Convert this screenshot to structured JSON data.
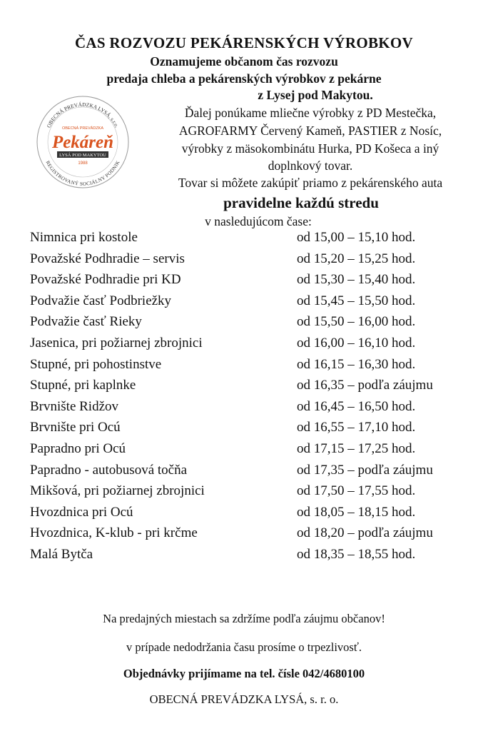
{
  "title": "ČAS ROZVOZU PEKÁRENSKÝCH VÝROBKOV",
  "subtitle_lines": [
    "Oznamujeme občanom čas rozvozu",
    "predaja chleba a  pekárenských výrobkov z  pekárne",
    "z Lysej pod Makytou."
  ],
  "info_lines": [
    "Ďalej ponúkame mliečne výrobky z PD Mestečka,",
    "AGROFARMY Červený Kameň, PASTIER z Nosíc,",
    "výrobky z mäsokombinátu Hurka, PD Košeca a iný",
    "doplnkový tovar.",
    "Tovar si môžete zakúpiť priamo z pekárenského auta"
  ],
  "highlight": "pravidelne každú stredu",
  "schedule_intro": "v nasledujúcom čase:",
  "logo": {
    "top_text": "OBECNÁ PREVÁDZKA LYSÁ, s.r.o.",
    "inner_text": "OBECNÁ PREVÁDZKA",
    "brand": "Pekáreň",
    "ribbon": "LYSÁ POD MAKYTOU",
    "year": "1988",
    "bottom_text": "REGISTROVANÝ SOCIÁLNY PODNIK",
    "brand_color": "#d9531e"
  },
  "schedule": [
    {
      "place": "Nimnica pri kostole",
      "time": "od 15,00 – 15,10 hod."
    },
    {
      "place": "Považské Podhradie – servis",
      "time": "od 15,20 – 15,25 hod."
    },
    {
      "place": "Považské Podhradie pri KD",
      "time": "od 15,30 – 15,40 hod."
    },
    {
      "place": "Podvažie časť Podbriežky",
      "time": "od 15,45 – 15,50 hod."
    },
    {
      "place": "Podvažie časť Rieky",
      "time": "od 15,50 – 16,00 hod."
    },
    {
      "place": "Jasenica, pri požiarnej zbrojnici",
      "time": "od 16,00 – 16,10 hod."
    },
    {
      "place": "Stupné, pri pohostinstve",
      "time": "od 16,15 – 16,30 hod."
    },
    {
      "place": "Stupné, pri kaplnke",
      "time": "od 16,35 – podľa záujmu"
    },
    {
      "place": "Brvnište Ridžov",
      "time": "od 16,45 – 16,50 hod."
    },
    {
      "place": "Brvnište pri Ocú",
      "time": "od 16,55 – 17,10 hod."
    },
    {
      "place": "Papradno pri Ocú",
      "time": "od 17,15 – 17,25 hod."
    },
    {
      "place": "Papradno - autobusová točňa",
      "time": "od 17,35 – podľa záujmu"
    },
    {
      "place": "Mikšová, pri požiarnej zbrojnici",
      "time": "od 17,50 – 17,55 hod."
    },
    {
      "place": "Hvozdnica pri Ocú",
      "time": "od 18,05 – 18,15 hod."
    },
    {
      "place": "Hvozdnica, K-klub - pri krčme",
      "time": "od 18,20 – podľa záujmu"
    },
    {
      "place": "Malá Bytča",
      "time": "od 18,35 – 18,55 hod."
    }
  ],
  "footer": [
    "Na predajných miestach sa zdržíme podľa záujmu občanov!",
    "v prípade nedodržania času prosíme o trpezlivosť.",
    "Objednávky prijímame na tel. čísle 042/4680100",
    "OBECNÁ PREVÁDZKA LYSÁ, s. r. o."
  ]
}
